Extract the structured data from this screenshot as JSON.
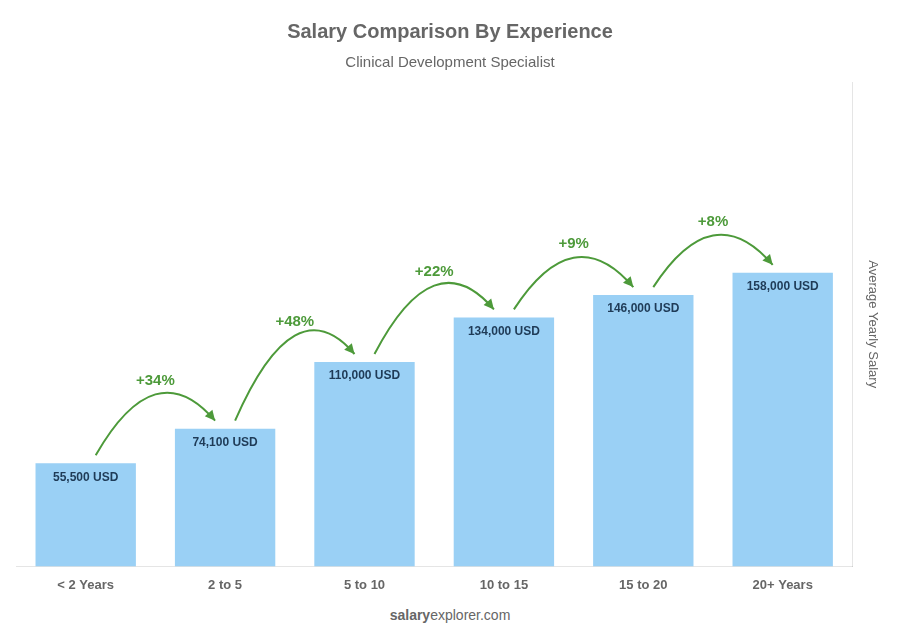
{
  "chart_data": {
    "type": "bar",
    "title": "Salary Comparison By Experience",
    "subtitle": "Clinical Development Specialist",
    "categories": [
      "< 2 Years",
      "2 to 5",
      "5 to 10",
      "10 to 15",
      "15 to 20",
      "20+ Years"
    ],
    "values": [
      55500,
      74100,
      110000,
      134000,
      146000,
      158000
    ],
    "value_labels": [
      "55,500 USD",
      "74,100 USD",
      "110,000 USD",
      "134,000 USD",
      "146,000 USD",
      "158,000 USD"
    ],
    "data_labels": true,
    "annotations": [
      "+34%",
      "+48%",
      "+22%",
      "+9%",
      "+8%"
    ],
    "ylabel": "Average Yearly Salary",
    "footer": [
      "salary",
      "explorer.com"
    ],
    "ylim": [
      0,
      260700
    ],
    "tick_labels": "x",
    "grid": false
  }
}
